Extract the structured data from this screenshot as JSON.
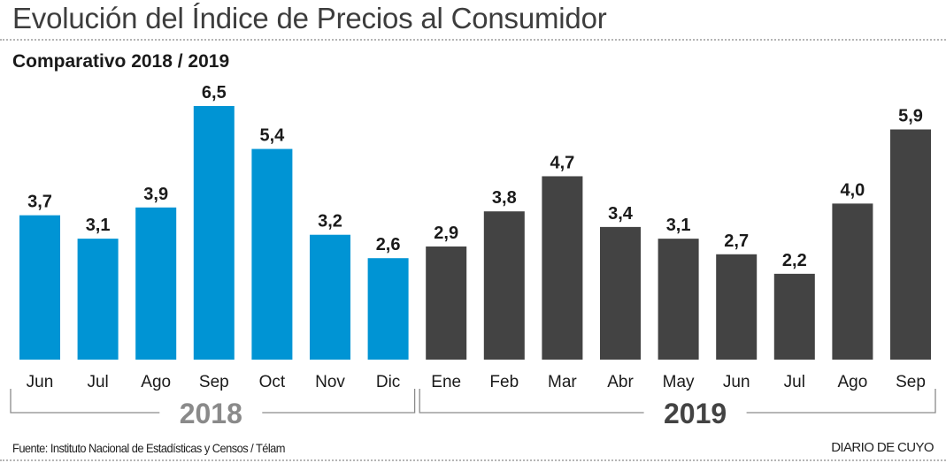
{
  "header": {
    "title": "Evolución del Índice de Precios al Consumidor",
    "subtitle": "Comparativo 2018 / 2019"
  },
  "footer": {
    "source": "Fuente: Instituto Nacional de Estadísticas y Censos / Télam",
    "brand": "DIARIO DE CUYO"
  },
  "colors": {
    "series_2018": "#0094d4",
    "series_2019": "#434343",
    "label_2018": "#8a8a8a",
    "label_2019": "#434343"
  },
  "chart_data": {
    "type": "bar",
    "title": "Evolución del Índice de Precios al Consumidor",
    "subtitle": "Comparativo 2018 / 2019",
    "xlabel": "",
    "ylabel": "",
    "ylim": [
      0,
      6.5
    ],
    "grid": false,
    "legend": "none",
    "groups": [
      {
        "name": "2018",
        "categories": [
          "Jun",
          "Jul",
          "Ago",
          "Sep",
          "Oct",
          "Nov",
          "Dic"
        ],
        "values": [
          3.7,
          3.1,
          3.9,
          6.5,
          5.4,
          3.2,
          2.6
        ],
        "labels": [
          "3,7",
          "3,1",
          "3,9",
          "6,5",
          "5,4",
          "3,2",
          "2,6"
        ]
      },
      {
        "name": "2019",
        "categories": [
          "Ene",
          "Feb",
          "Mar",
          "Abr",
          "May",
          "Jun",
          "Jul",
          "Ago",
          "Sep"
        ],
        "values": [
          2.9,
          3.8,
          4.7,
          3.4,
          3.1,
          2.7,
          2.2,
          4.0,
          5.9
        ],
        "labels": [
          "2,9",
          "3,8",
          "4,7",
          "3,4",
          "3,1",
          "2,7",
          "2,2",
          "4,0",
          "5,9"
        ]
      }
    ]
  }
}
